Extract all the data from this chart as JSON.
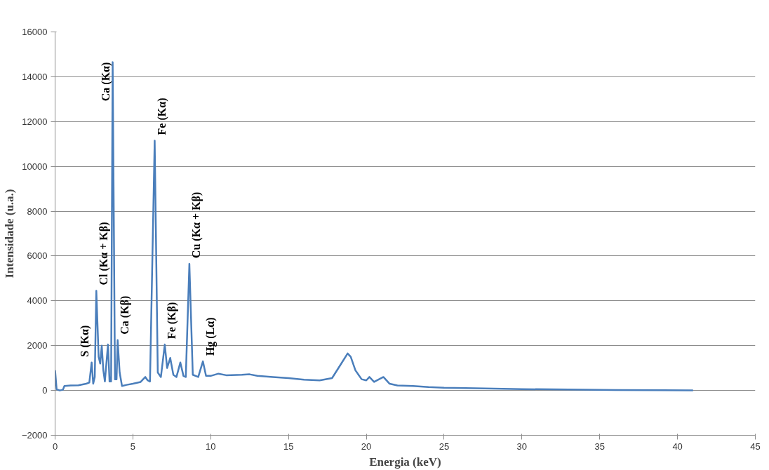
{
  "chart_data": {
    "type": "line",
    "xlabel": "Energia (keV)",
    "ylabel": "Intensidade (u.a.)",
    "x": [
      0,
      0.1,
      0.3,
      0.5,
      0.6,
      1.0,
      1.5,
      2.0,
      2.2,
      2.35,
      2.45,
      2.55,
      2.65,
      2.8,
      2.9,
      3.0,
      3.1,
      3.2,
      3.4,
      3.5,
      3.6,
      3.7,
      3.85,
      3.95,
      4.02,
      4.15,
      4.3,
      4.6,
      5.0,
      5.5,
      5.8,
      5.95,
      6.1,
      6.4,
      6.6,
      6.8,
      7.05,
      7.2,
      7.4,
      7.6,
      7.8,
      8.05,
      8.25,
      8.4,
      8.63,
      8.85,
      9.2,
      9.5,
      9.7,
      10.0,
      10.5,
      11,
      12,
      12.5,
      13,
      14,
      15,
      16,
      17,
      17.8,
      18.3,
      18.8,
      19.0,
      19.3,
      19.7,
      20.0,
      20.2,
      20.5,
      21.1,
      21.5,
      22,
      23,
      24,
      25,
      27,
      30,
      33,
      36,
      39,
      41
    ],
    "series": [
      {
        "color": "#4a7ebb",
        "values": [
          900,
          50,
          0,
          30,
          200,
          220,
          230,
          300,
          350,
          1250,
          300,
          600,
          4450,
          1500,
          1200,
          2000,
          900,
          400,
          2050,
          400,
          400,
          14650,
          500,
          500,
          2250,
          800,
          200,
          250,
          300,
          380,
          600,
          450,
          400,
          11150,
          800,
          600,
          2050,
          1000,
          1450,
          700,
          600,
          1250,
          650,
          600,
          5650,
          700,
          600,
          1300,
          650,
          650,
          750,
          680,
          700,
          720,
          650,
          600,
          550,
          480,
          450,
          550,
          1100,
          1650,
          1500,
          900,
          500,
          450,
          600,
          380,
          600,
          300,
          220,
          200,
          150,
          120,
          100,
          60,
          40,
          20,
          10,
          0
        ]
      }
    ],
    "xlim": [
      0,
      45
    ],
    "xticks": [
      0,
      5,
      10,
      15,
      20,
      25,
      30,
      35,
      40,
      45
    ],
    "ylim": [
      -2000,
      16000
    ],
    "yticks": [
      -2000,
      0,
      2000,
      4000,
      6000,
      8000,
      10000,
      12000,
      14000,
      16000
    ],
    "grid": "y",
    "marker": "none",
    "line_style": "solid",
    "annotations": [
      {
        "text": "S (Kα)",
        "x": 2.35,
        "y": 1250
      },
      {
        "text": "Cl (Kα + Kβ)",
        "x": 2.65,
        "y": 4450
      },
      {
        "text": "Ca (Kα)",
        "x": 3.7,
        "y": 14650
      },
      {
        "text": "Ca (Kβ)",
        "x": 4.02,
        "y": 2250
      },
      {
        "text": "Fe (Kα)",
        "x": 6.4,
        "y": 11150
      },
      {
        "text": "Fe (Kβ)",
        "x": 7.05,
        "y": 2050
      },
      {
        "text": "Cu (Kα + Kβ)",
        "x": 8.63,
        "y": 5650
      },
      {
        "text": "Hg (Lα)",
        "x": 9.5,
        "y": 1300
      }
    ]
  }
}
